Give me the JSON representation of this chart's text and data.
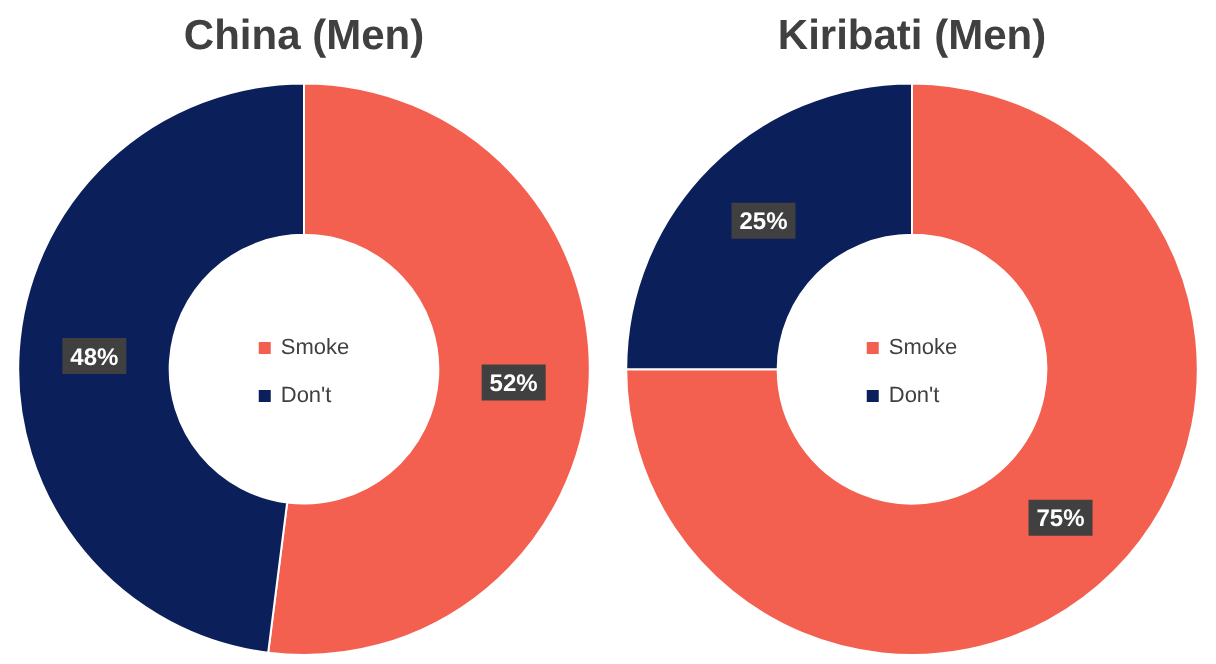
{
  "chart_data": [
    {
      "type": "donut",
      "title": "China (Men)",
      "categories": [
        "Smoke",
        "Don't"
      ],
      "values": [
        52,
        48
      ],
      "colors": [
        "#f4604f",
        "#0b1f5b"
      ],
      "value_labels": [
        "52%",
        "48%"
      ],
      "legend": "center"
    },
    {
      "type": "donut",
      "title": "Kiribati (Men)",
      "categories": [
        "Smoke",
        "Don't"
      ],
      "values": [
        75,
        25
      ],
      "colors": [
        "#f4604f",
        "#0b1f5b"
      ],
      "value_labels": [
        "75%",
        "25%"
      ],
      "legend": "center"
    }
  ]
}
